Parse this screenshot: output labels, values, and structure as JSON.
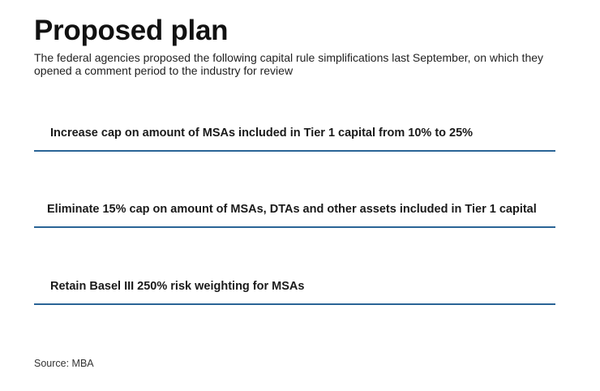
{
  "title": "Proposed plan",
  "subtitle": "The federal agencies proposed the following capital rule simplifications last September, on which they opened a comment period to the industry for review",
  "items": [
    {
      "text": "Increase cap on amount of MSAs included in Tier 1 capital from 10% to 25%"
    },
    {
      "text": "Eliminate 15% cap on amount of MSAs, DTAs and other assets included in Tier 1 capital"
    },
    {
      "text": "Retain Basel III 250% risk weighting for MSAs"
    }
  ],
  "source": "Source: MBA",
  "colors": {
    "rule": "#2a6496",
    "text": "#1a1a1a"
  }
}
